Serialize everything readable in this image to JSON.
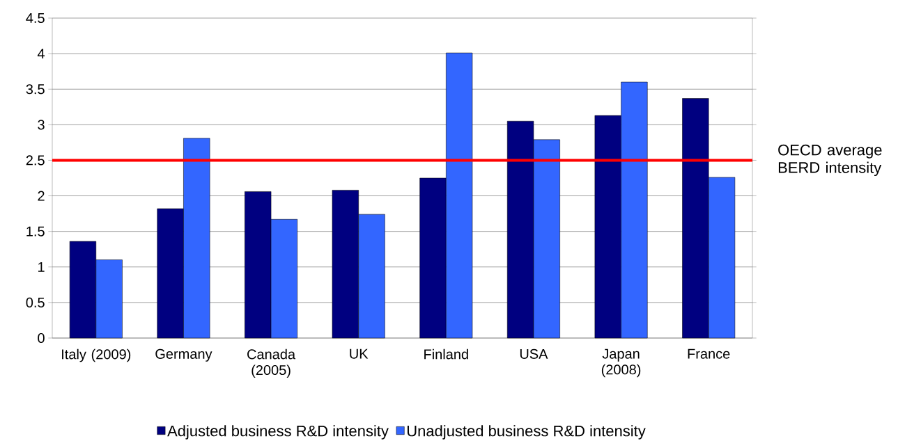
{
  "chart_data": {
    "type": "bar",
    "categories": [
      "Italy (2009)",
      "Germany",
      "Canada (2005)",
      "UK",
      "Finland",
      "USA",
      "Japan (2008)",
      "France"
    ],
    "series": [
      {
        "name": "Adjusted business R&D intensity",
        "color": "#000080",
        "values": [
          1.36,
          1.82,
          2.06,
          2.08,
          2.25,
          3.05,
          3.13,
          3.37
        ]
      },
      {
        "name": "Unadjusted business R&D intensity",
        "color": "#3366ff",
        "values": [
          1.1,
          2.81,
          1.67,
          1.74,
          4.01,
          2.79,
          3.6,
          2.26
        ]
      }
    ],
    "ylim": [
      0,
      4.5
    ],
    "yticks": [
      0,
      0.5,
      1,
      1.5,
      2,
      2.5,
      3,
      3.5,
      4,
      4.5
    ],
    "ref_lines": [
      {
        "axis": "y",
        "value": 2.5,
        "label": "OECD average BERD intensity",
        "color": "#ff0000"
      }
    ],
    "grid": "y",
    "legend": "bottom"
  }
}
